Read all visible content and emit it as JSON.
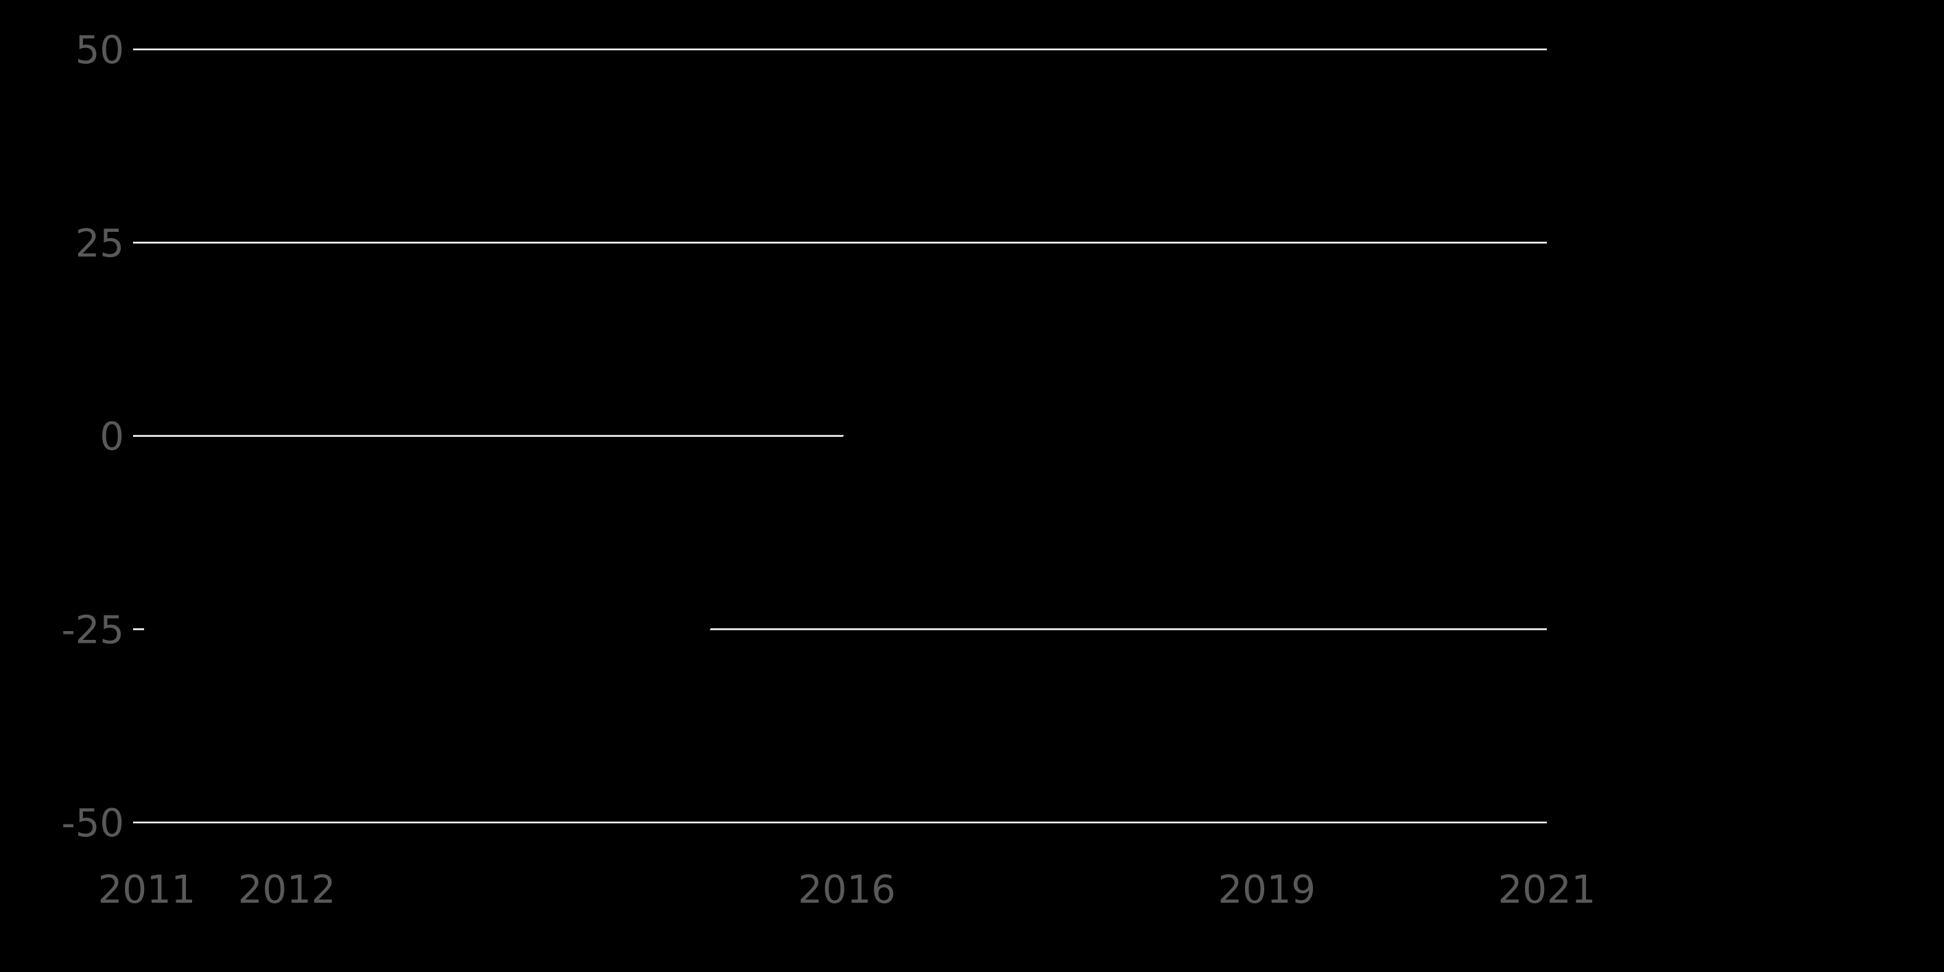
{
  "chart_data": {
    "type": "line",
    "title": "",
    "xlabel": "",
    "ylabel": "",
    "x_ticks": [
      "2011",
      "2012",
      "2016",
      "2019",
      "2021"
    ],
    "y_ticks": [
      "50",
      "25",
      "0",
      "-25",
      "-50"
    ],
    "xlim": [
      2011,
      2021
    ],
    "ylim": [
      -50,
      50
    ],
    "grid": "horizontal",
    "legend": "none",
    "series": [
      {
        "x": [
          "2011",
          "2012",
          "2013",
          "2014",
          "2015",
          "2016",
          "2017",
          "2018",
          "2019",
          "2020",
          "2021"
        ],
        "values": [
          -25,
          -25,
          -25,
          -25,
          -25,
          0,
          0,
          0,
          0,
          0,
          0
        ]
      }
    ],
    "colors": {
      "background": "#000000",
      "grid": "#ffffff",
      "tick_label": "#595959",
      "line": "#000000"
    }
  }
}
